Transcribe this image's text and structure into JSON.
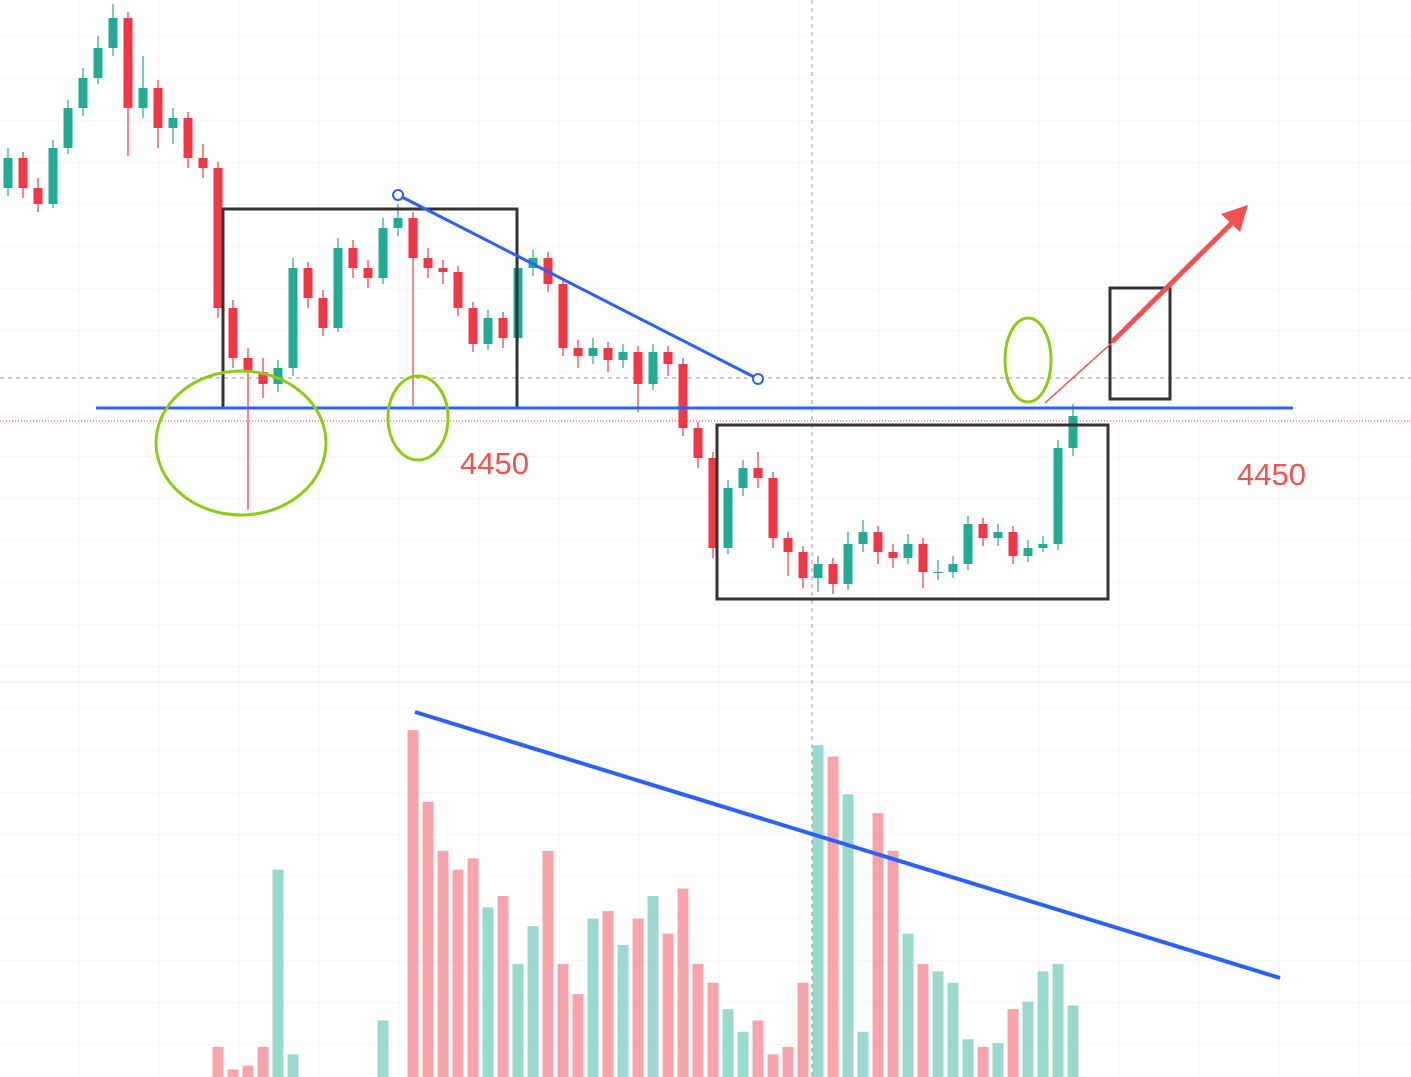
{
  "chart_data": {
    "type": "candlestick",
    "ohlc": [
      [
        4560,
        4580,
        4556,
        4575
      ],
      [
        4575,
        4578,
        4555,
        4560
      ],
      [
        4560,
        4565,
        4548,
        4552
      ],
      [
        4552,
        4584,
        4550,
        4580
      ],
      [
        4580,
        4604,
        4577,
        4600
      ],
      [
        4600,
        4620,
        4596,
        4615
      ],
      [
        4615,
        4636,
        4612,
        4630
      ],
      [
        4630,
        4652,
        4626,
        4645
      ],
      [
        4645,
        4648,
        4576,
        4600
      ],
      [
        4600,
        4626,
        4595,
        4610
      ],
      [
        4610,
        4614,
        4580,
        4590
      ],
      [
        4590,
        4600,
        4582,
        4595
      ],
      [
        4595,
        4598,
        4570,
        4575
      ],
      [
        4575,
        4582,
        4565,
        4570
      ],
      [
        4570,
        4573,
        4495,
        4500
      ],
      [
        4500,
        4504,
        4470,
        4475
      ],
      [
        4475,
        4480,
        4399,
        4468
      ],
      [
        4468,
        4475,
        4455,
        4462
      ],
      [
        4462,
        4474,
        4458,
        4470
      ],
      [
        4470,
        4525,
        4466,
        4520
      ],
      [
        4520,
        4523,
        4500,
        4505
      ],
      [
        4505,
        4509,
        4486,
        4490
      ],
      [
        4490,
        4535,
        4488,
        4530
      ],
      [
        4530,
        4534,
        4515,
        4520
      ],
      [
        4520,
        4524,
        4510,
        4515
      ],
      [
        4515,
        4545,
        4512,
        4540
      ],
      [
        4540,
        4552,
        4536,
        4545
      ],
      [
        4545,
        4548,
        4451,
        4525
      ],
      [
        4525,
        4530,
        4515,
        4520
      ],
      [
        4520,
        4524,
        4512,
        4518
      ],
      [
        4518,
        4521,
        4496,
        4500
      ],
      [
        4500,
        4503,
        4478,
        4482
      ],
      [
        4482,
        4499,
        4479,
        4495
      ],
      [
        4495,
        4498,
        4480,
        4485
      ],
      [
        4485,
        4524,
        4482,
        4520
      ],
      [
        4520,
        4529,
        4516,
        4525
      ],
      [
        4525,
        4528,
        4508,
        4512
      ],
      [
        4512,
        4515,
        4476,
        4480
      ],
      [
        4480,
        4484,
        4470,
        4476
      ],
      [
        4476,
        4485,
        4472,
        4480
      ],
      [
        4480,
        4483,
        4468,
        4474
      ],
      [
        4474,
        4482,
        4470,
        4478
      ],
      [
        4478,
        4481,
        4448,
        4462
      ],
      [
        4462,
        4482,
        4459,
        4478
      ],
      [
        4478,
        4481,
        4466,
        4472
      ],
      [
        4472,
        4475,
        4436,
        4440
      ],
      [
        4440,
        4443,
        4420,
        4425
      ],
      [
        4425,
        4428,
        4375,
        4380
      ],
      [
        4380,
        4414,
        4377,
        4410
      ],
      [
        4410,
        4424,
        4406,
        4420
      ],
      [
        4420,
        4428,
        4410,
        4415
      ],
      [
        4415,
        4418,
        4380,
        4385
      ],
      [
        4385,
        4388,
        4366,
        4378
      ],
      [
        4378,
        4381,
        4360,
        4365
      ],
      [
        4365,
        4376,
        4358,
        4372
      ],
      [
        4372,
        4375,
        4357,
        4362
      ],
      [
        4362,
        4388,
        4359,
        4382
      ],
      [
        4382,
        4394,
        4378,
        4388
      ],
      [
        4388,
        4391,
        4372,
        4378
      ],
      [
        4378,
        4382,
        4370,
        4375
      ],
      [
        4375,
        4387,
        4372,
        4382
      ],
      [
        4382,
        4385,
        4360,
        4368
      ],
      [
        4368,
        4374,
        4364,
        4368
      ],
      [
        4368,
        4376,
        4365,
        4372
      ],
      [
        4372,
        4396,
        4369,
        4392
      ],
      [
        4392,
        4395,
        4381,
        4385
      ],
      [
        4385,
        4392,
        4381,
        4388
      ],
      [
        4388,
        4391,
        4372,
        4376
      ],
      [
        4376,
        4384,
        4373,
        4380
      ],
      [
        4380,
        4386,
        4378,
        4382
      ],
      [
        4382,
        4434,
        4379,
        4430
      ],
      [
        4430,
        4452,
        4426,
        4446
      ]
    ],
    "volume": [
      null,
      null,
      null,
      null,
      null,
      null,
      null,
      null,
      null,
      null,
      null,
      null,
      null,
      null,
      8,
      2,
      3,
      8,
      55,
      6,
      null,
      null,
      null,
      null,
      null,
      15,
      null,
      92,
      73,
      60,
      55,
      58,
      45,
      48,
      30,
      40,
      60,
      30,
      22,
      42,
      44,
      35,
      42,
      48,
      38,
      50,
      30,
      25,
      18,
      12,
      15,
      6,
      8,
      25,
      88,
      85,
      75,
      12,
      70,
      60,
      38,
      30,
      28,
      25,
      10,
      8,
      9,
      18,
      20,
      28,
      30,
      19
    ],
    "up_color": "#22ab94",
    "down_color": "#f23645",
    "ylim": [
      4344,
      4654
    ],
    "volume_lim": [
      0,
      100
    ],
    "annotations": [
      "4450",
      "4450"
    ]
  }
}
